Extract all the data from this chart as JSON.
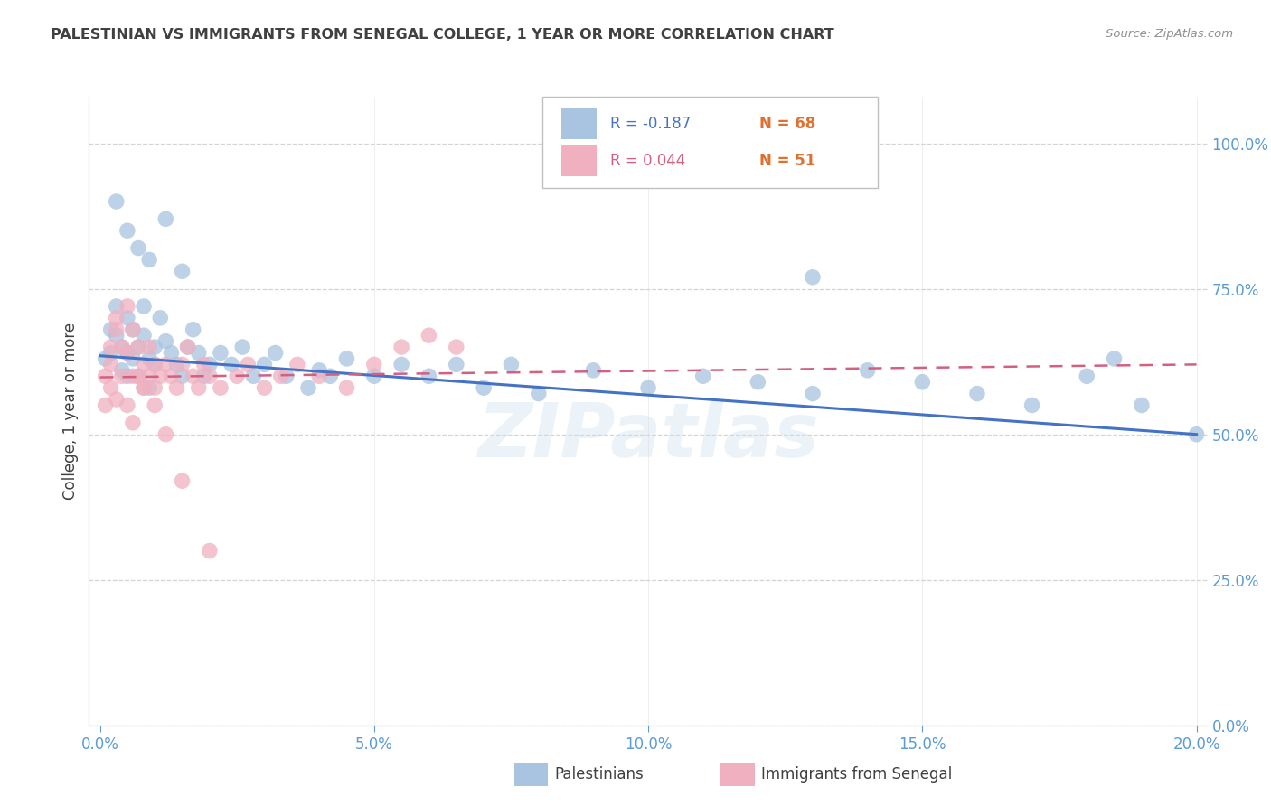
{
  "title": "PALESTINIAN VS IMMIGRANTS FROM SENEGAL COLLEGE, 1 YEAR OR MORE CORRELATION CHART",
  "source": "Source: ZipAtlas.com",
  "ylabel": "College, 1 year or more",
  "xlabel_ticks": [
    "0.0%",
    "5.0%",
    "10.0%",
    "15.0%",
    "20.0%"
  ],
  "xlabel_vals": [
    0.0,
    0.05,
    0.1,
    0.15,
    0.2
  ],
  "ylabel_ticks": [
    "0.0%",
    "25.0%",
    "50.0%",
    "75.0%",
    "100.0%"
  ],
  "ylabel_vals": [
    0.0,
    0.25,
    0.5,
    0.75,
    1.0
  ],
  "watermark": "ZIPatlas",
  "blue_color": "#a8c4e0",
  "pink_color": "#f0b0c0",
  "line_blue": "#4472c4",
  "line_pink": "#d46080",
  "title_color": "#404040",
  "axis_label_color": "#404040",
  "tick_color": "#5b9bd5",
  "grid_color": "#c8c8c8",
  "source_color": "#909090",
  "blue_scatter_x": [
    0.001,
    0.002,
    0.002,
    0.003,
    0.003,
    0.004,
    0.004,
    0.005,
    0.005,
    0.005,
    0.006,
    0.006,
    0.007,
    0.007,
    0.008,
    0.008,
    0.009,
    0.009,
    0.01,
    0.01,
    0.011,
    0.012,
    0.013,
    0.014,
    0.015,
    0.016,
    0.017,
    0.018,
    0.019,
    0.02,
    0.022,
    0.024,
    0.026,
    0.028,
    0.03,
    0.032,
    0.034,
    0.038,
    0.04,
    0.042,
    0.045,
    0.05,
    0.055,
    0.06,
    0.065,
    0.07,
    0.075,
    0.08,
    0.09,
    0.1,
    0.11,
    0.12,
    0.13,
    0.14,
    0.15,
    0.16,
    0.17,
    0.18,
    0.19,
    0.2,
    0.003,
    0.005,
    0.007,
    0.009,
    0.012,
    0.015,
    0.13,
    0.185
  ],
  "blue_scatter_y": [
    0.63,
    0.68,
    0.64,
    0.67,
    0.72,
    0.61,
    0.65,
    0.7,
    0.64,
    0.6,
    0.68,
    0.63,
    0.65,
    0.6,
    0.72,
    0.67,
    0.63,
    0.58,
    0.62,
    0.65,
    0.7,
    0.66,
    0.64,
    0.62,
    0.6,
    0.65,
    0.68,
    0.64,
    0.6,
    0.62,
    0.64,
    0.62,
    0.65,
    0.6,
    0.62,
    0.64,
    0.6,
    0.58,
    0.61,
    0.6,
    0.63,
    0.6,
    0.62,
    0.6,
    0.62,
    0.58,
    0.62,
    0.57,
    0.61,
    0.58,
    0.6,
    0.59,
    0.57,
    0.61,
    0.59,
    0.57,
    0.55,
    0.6,
    0.55,
    0.5,
    0.9,
    0.85,
    0.82,
    0.8,
    0.87,
    0.78,
    0.77,
    0.63
  ],
  "pink_scatter_x": [
    0.001,
    0.002,
    0.002,
    0.003,
    0.003,
    0.004,
    0.005,
    0.005,
    0.006,
    0.006,
    0.007,
    0.007,
    0.008,
    0.008,
    0.009,
    0.009,
    0.01,
    0.01,
    0.011,
    0.012,
    0.013,
    0.014,
    0.015,
    0.016,
    0.017,
    0.018,
    0.019,
    0.02,
    0.022,
    0.025,
    0.027,
    0.03,
    0.033,
    0.036,
    0.04,
    0.045,
    0.05,
    0.055,
    0.06,
    0.065,
    0.001,
    0.002,
    0.003,
    0.004,
    0.005,
    0.006,
    0.008,
    0.01,
    0.012,
    0.015,
    0.02
  ],
  "pink_scatter_y": [
    0.6,
    0.65,
    0.62,
    0.7,
    0.68,
    0.65,
    0.72,
    0.64,
    0.68,
    0.6,
    0.65,
    0.6,
    0.62,
    0.58,
    0.65,
    0.6,
    0.62,
    0.58,
    0.6,
    0.62,
    0.6,
    0.58,
    0.62,
    0.65,
    0.6,
    0.58,
    0.62,
    0.6,
    0.58,
    0.6,
    0.62,
    0.58,
    0.6,
    0.62,
    0.6,
    0.58,
    0.62,
    0.65,
    0.67,
    0.65,
    0.55,
    0.58,
    0.56,
    0.6,
    0.55,
    0.52,
    0.58,
    0.55,
    0.5,
    0.42,
    0.3
  ],
  "blue_line_x": [
    0.0,
    0.2
  ],
  "blue_line_y": [
    0.635,
    0.5
  ],
  "pink_line_x": [
    0.0,
    0.2
  ],
  "pink_line_y": [
    0.598,
    0.62
  ],
  "xlim": [
    -0.002,
    0.202
  ],
  "ylim": [
    0.0,
    1.08
  ],
  "plot_bg": "#ffffff",
  "fig_bg": "#ffffff",
  "legend_box_color": "#e8e8e8",
  "n_color": "#e07030"
}
